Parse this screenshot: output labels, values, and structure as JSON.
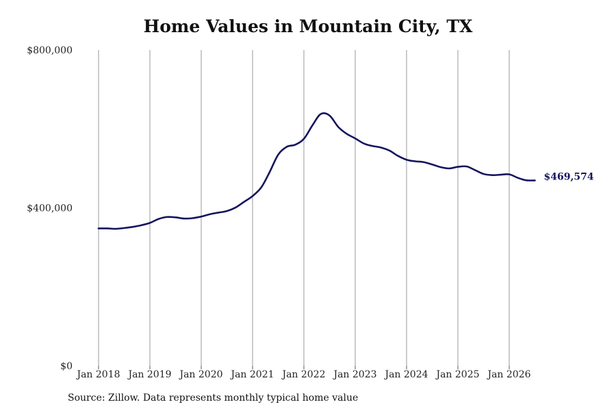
{
  "chart_data": {
    "type": "line",
    "title": "Home Values in Mountain City, TX",
    "source": "Source: Zillow. Data represents monthly typical home value",
    "ylim": [
      0,
      800000
    ],
    "y_ticks": [
      {
        "value": 0,
        "label": "$0"
      },
      {
        "value": 400000,
        "label": "$400,000"
      },
      {
        "value": 800000,
        "label": "$800,000"
      }
    ],
    "x_ticks": [
      {
        "value": 2018.0,
        "label": "Jan 2018"
      },
      {
        "value": 2019.0,
        "label": "Jan 2019"
      },
      {
        "value": 2020.0,
        "label": "Jan 2020"
      },
      {
        "value": 2021.0,
        "label": "Jan 2021"
      },
      {
        "value": 2022.0,
        "label": "Jan 2022"
      },
      {
        "value": 2023.0,
        "label": "Jan 2023"
      },
      {
        "value": 2024.0,
        "label": "Jan 2024"
      },
      {
        "value": 2025.0,
        "label": "Jan 2025"
      },
      {
        "value": 2026.0,
        "label": "Jan 2026"
      }
    ],
    "xlim": [
      2017.5,
      2027.1
    ],
    "grid": "vertical",
    "line_color": "#14145e",
    "end_label": "$469,574",
    "series": [
      {
        "points": [
          [
            2018.0,
            348000
          ],
          [
            2018.17,
            348000
          ],
          [
            2018.33,
            347000
          ],
          [
            2018.5,
            349000
          ],
          [
            2018.67,
            352000
          ],
          [
            2018.83,
            356000
          ],
          [
            2019.0,
            362000
          ],
          [
            2019.17,
            372000
          ],
          [
            2019.33,
            377000
          ],
          [
            2019.5,
            376000
          ],
          [
            2019.67,
            373000
          ],
          [
            2019.83,
            374000
          ],
          [
            2020.0,
            378000
          ],
          [
            2020.17,
            384000
          ],
          [
            2020.33,
            388000
          ],
          [
            2020.5,
            392000
          ],
          [
            2020.67,
            401000
          ],
          [
            2020.83,
            415000
          ],
          [
            2021.0,
            430000
          ],
          [
            2021.17,
            452000
          ],
          [
            2021.33,
            490000
          ],
          [
            2021.5,
            535000
          ],
          [
            2021.67,
            555000
          ],
          [
            2021.83,
            560000
          ],
          [
            2022.0,
            575000
          ],
          [
            2022.17,
            610000
          ],
          [
            2022.33,
            638000
          ],
          [
            2022.5,
            634000
          ],
          [
            2022.67,
            605000
          ],
          [
            2022.83,
            588000
          ],
          [
            2023.0,
            576000
          ],
          [
            2023.17,
            563000
          ],
          [
            2023.33,
            557000
          ],
          [
            2023.5,
            553000
          ],
          [
            2023.67,
            545000
          ],
          [
            2023.83,
            532000
          ],
          [
            2024.0,
            522000
          ],
          [
            2024.17,
            518000
          ],
          [
            2024.33,
            516000
          ],
          [
            2024.5,
            510000
          ],
          [
            2024.67,
            503000
          ],
          [
            2024.83,
            500000
          ],
          [
            2025.0,
            504000
          ],
          [
            2025.17,
            505000
          ],
          [
            2025.33,
            496000
          ],
          [
            2025.5,
            486000
          ],
          [
            2025.67,
            483000
          ],
          [
            2025.83,
            484000
          ],
          [
            2026.0,
            485000
          ],
          [
            2026.17,
            476000
          ],
          [
            2026.33,
            470000
          ],
          [
            2026.5,
            469574
          ]
        ]
      }
    ]
  }
}
